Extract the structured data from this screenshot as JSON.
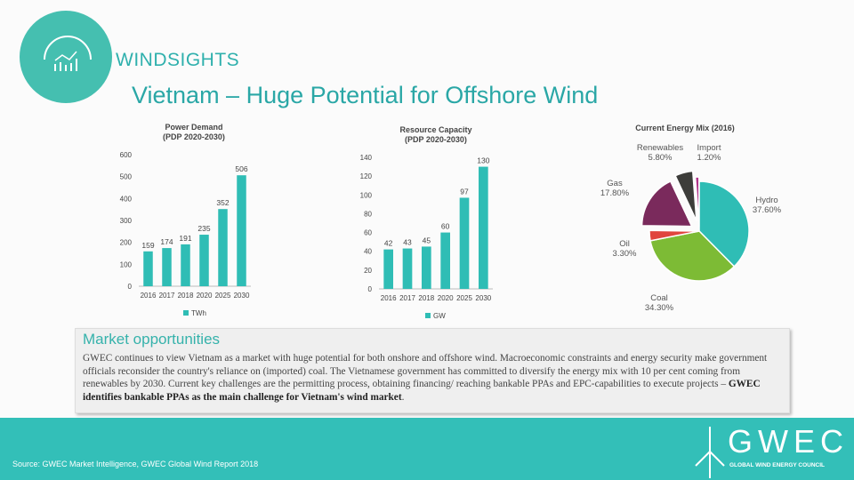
{
  "brand": "WINDSIGHTS",
  "title": "Vietnam – Huge Potential for Offshore Wind",
  "colors": {
    "teal": "#33bfb8",
    "bar": "#2fbdb5"
  },
  "chart_data": [
    {
      "type": "bar",
      "title": "Power Demand",
      "subtitle": "(PDP 2020-2030)",
      "categories": [
        "2016",
        "2017",
        "2018",
        "2020",
        "2025",
        "2030"
      ],
      "values": [
        159,
        174,
        191,
        235,
        352,
        506
      ],
      "ylim": [
        0,
        600
      ],
      "yticks": [
        0,
        100,
        200,
        300,
        400,
        500,
        600
      ],
      "legend": "TWh"
    },
    {
      "type": "bar",
      "title": "Resource Capacity",
      "subtitle": "(PDP 2020-2030)",
      "categories": [
        "2016",
        "2017",
        "2018",
        "2020",
        "2025",
        "2030"
      ],
      "values": [
        42,
        43,
        45,
        60,
        97,
        130
      ],
      "ylim": [
        0,
        140
      ],
      "yticks": [
        0,
        20,
        40,
        60,
        80,
        100,
        120,
        140
      ],
      "legend": "GW"
    },
    {
      "type": "pie",
      "title": "Current Energy Mix (2016)",
      "slices": [
        {
          "label": "Hydro",
          "value": 37.6,
          "text": "37.60%",
          "color": "#2fbdb5"
        },
        {
          "label": "Coal",
          "value": 34.3,
          "text": "34.30%",
          "color": "#7dbb35"
        },
        {
          "label": "Oil",
          "value": 3.3,
          "text": "3.30%",
          "color": "#e0453e"
        },
        {
          "label": "Gas",
          "value": 17.8,
          "text": "17.80%",
          "color": "#7a2a5c"
        },
        {
          "label": "Renewables",
          "value": 5.8,
          "text": "5.80%",
          "color": "#3d3d3a"
        },
        {
          "label": "Import",
          "value": 1.2,
          "text": "1.20%",
          "color": "#b0348a"
        }
      ]
    }
  ],
  "market": {
    "heading": "Market opportunities",
    "body": "GWEC continues to view Vietnam as a market with huge potential for both onshore and offshore wind. Macroeconomic constraints and energy security make government officials reconsider the country's reliance on (imported) coal. The Vietnamese government has committed to diversify the energy mix with 10 per cent coming from renewables by 2030. Current key challenges are the permitting process, obtaining financing/ reaching bankable PPAs and EPC-capabilities to execute projects – ",
    "bold": "GWEC identifies bankable PPAs as the main challenge for Vietnam's wind market",
    "end": "."
  },
  "footer": {
    "source": "Source: GWEC Market Intelligence, GWEC Global Wind Report 2018",
    "logo": "GWEC",
    "logo_sub": "GLOBAL WIND ENERGY COUNCIL"
  }
}
